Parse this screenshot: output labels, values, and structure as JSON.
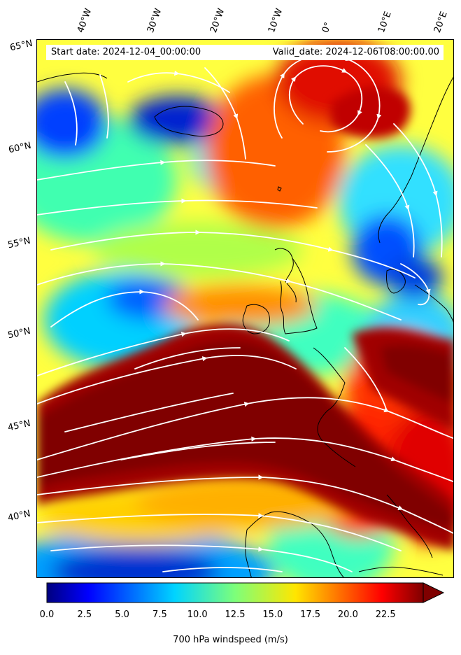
{
  "map": {
    "start_label": "Start date: 2024-12-04_00:00:00",
    "valid_label": "Valid_date: 2024-12-06T08:00:00.00",
    "field": "700 hPa windspeed",
    "lon_labels": [
      "40°W",
      "30°W",
      "20°W",
      "10°W",
      "0°",
      "10°E",
      "20°E"
    ],
    "lat_labels": [
      "65°N",
      "60°N",
      "55°N",
      "50°N",
      "45°N",
      "40°N"
    ],
    "colors": {
      "jet_core": "#800000",
      "streamlines": "#ffffff",
      "coastlines": "#000000"
    }
  },
  "colorbar": {
    "min": 0,
    "max": 25,
    "extend": "max",
    "ticks": [
      "0.0",
      "2.5",
      "5.0",
      "7.5",
      "10.0",
      "12.5",
      "15.0",
      "17.5",
      "20.0",
      "22.5"
    ],
    "tick_values": [
      0,
      2.5,
      5,
      7.5,
      10,
      12.5,
      15,
      17.5,
      20,
      22.5
    ],
    "label": "700 hPa windspeed (m/s)",
    "colormap": "jet"
  }
}
